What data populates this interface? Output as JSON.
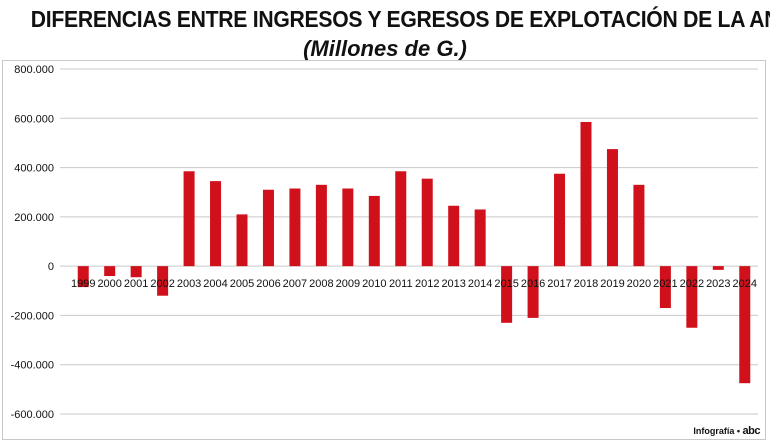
{
  "chart_data": {
    "type": "bar",
    "title": "DIFERENCIAS ENTRE INGRESOS Y EGRESOS DE EXPLOTACIÓN DE LA ANDE",
    "subtitle": "(Millones de G.)",
    "xlabel": "",
    "ylabel": "",
    "ylim": [
      -600000,
      800000
    ],
    "yticks": [
      800000,
      600000,
      400000,
      200000,
      0,
      -200000,
      -400000,
      -600000
    ],
    "ytick_labels": [
      "800.000",
      "600.000",
      "400.000",
      "200.000",
      "0",
      "-200.000",
      "-400.000",
      "-600.000"
    ],
    "categories": [
      "1999",
      "2000",
      "2001",
      "2002",
      "2003",
      "2004",
      "2005",
      "2006",
      "2007",
      "2008",
      "2009",
      "2010",
      "2011",
      "2012",
      "2013",
      "2014",
      "2015",
      "2016",
      "2017",
      "2018",
      "2019",
      "2020",
      "2021",
      "2022",
      "2023",
      "2024"
    ],
    "values": [
      -85000,
      -40000,
      -45000,
      -120000,
      385000,
      345000,
      210000,
      310000,
      315000,
      330000,
      315000,
      285000,
      385000,
      355000,
      245000,
      230000,
      -230000,
      -210000,
      375000,
      585000,
      475000,
      330000,
      -170000,
      -250000,
      -15000,
      -475000
    ],
    "bar_color": "#d0111b",
    "grid": true,
    "legend": "none"
  },
  "credit": {
    "label": "Infografía •",
    "logo": "abc"
  }
}
